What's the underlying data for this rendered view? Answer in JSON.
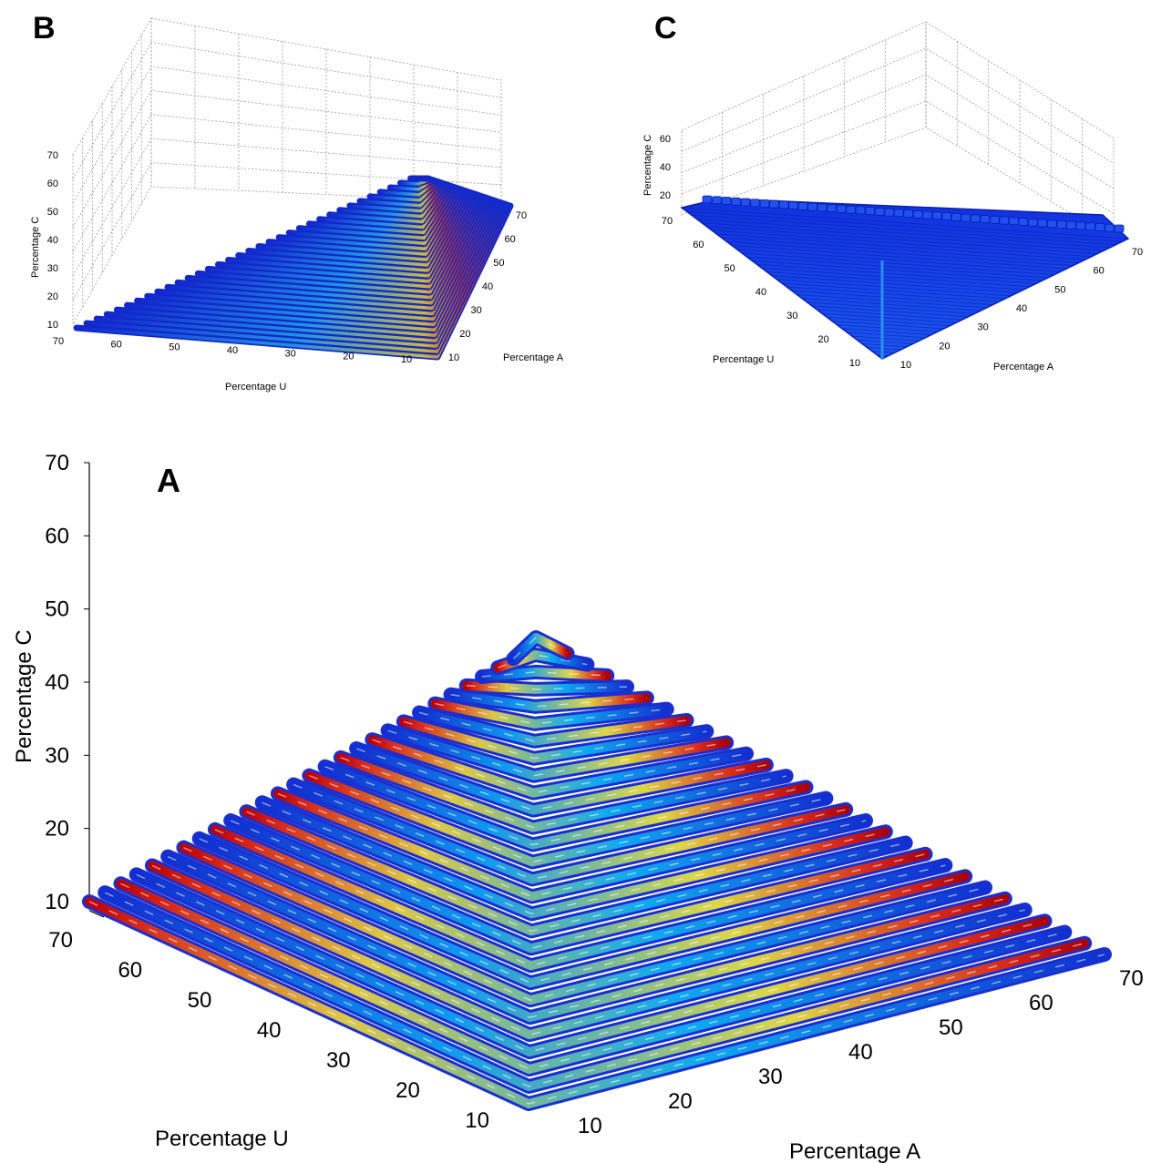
{
  "chart_data": [
    {
      "panel": "A",
      "type": "surface-3d",
      "title": "",
      "xlabel": "Percentage U",
      "ylabel": "Percentage A",
      "zlabel": "Percentage C",
      "u_ticks": [
        "10",
        "20",
        "30",
        "40",
        "50",
        "60",
        "70"
      ],
      "a_ticks": [
        "10",
        "20",
        "30",
        "40",
        "50",
        "60",
        "70"
      ],
      "c_ticks": [
        "10",
        "20",
        "30",
        "40",
        "50",
        "60",
        "70"
      ],
      "layers": {
        "c_min": 10,
        "c_max": 46,
        "count": 28
      },
      "colormap": "jet",
      "grid": false
    },
    {
      "panel": "B",
      "type": "surface-3d",
      "title": "",
      "xlabel": "Percentage U",
      "ylabel": "Percentage A",
      "zlabel": "Percentage C",
      "u_ticks": [
        "10",
        "20",
        "30",
        "40",
        "50",
        "60",
        "70"
      ],
      "a_ticks": [
        "10",
        "20",
        "30",
        "40",
        "50",
        "60",
        "70"
      ],
      "c_ticks": [
        "10",
        "20",
        "30",
        "40",
        "50",
        "60",
        "70"
      ],
      "layers": {
        "c_min": 10,
        "c_max": 58,
        "count": 34
      },
      "colormap": "jet",
      "grid": true
    },
    {
      "panel": "C",
      "type": "surface-3d",
      "title": "",
      "xlabel": "Percentage U",
      "ylabel": "Percentage A",
      "zlabel": "Percentage C",
      "u_ticks": [
        "10",
        "20",
        "30",
        "40",
        "50",
        "60",
        "70"
      ],
      "a_ticks": [
        "10",
        "20",
        "30",
        "40",
        "50",
        "60",
        "70"
      ],
      "c_ticks": [
        "20",
        "40",
        "60"
      ],
      "layers": {
        "c_min": 10,
        "c_max": 20,
        "count": 40
      },
      "colormap": "jet",
      "grid": true
    }
  ]
}
